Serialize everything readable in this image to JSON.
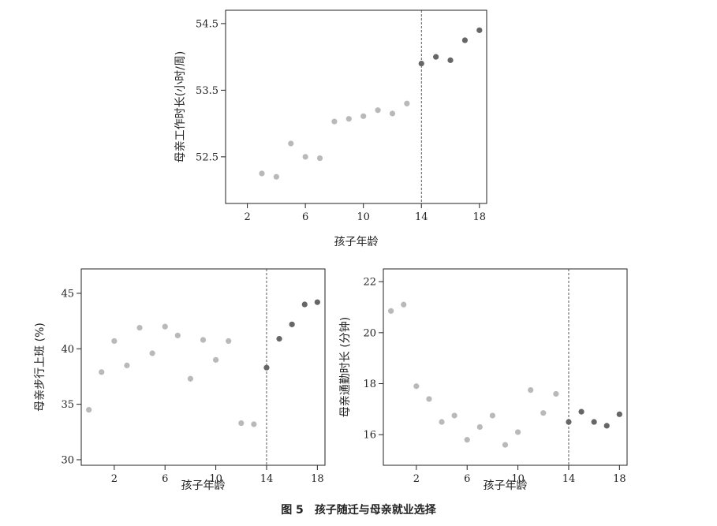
{
  "caption": {
    "number": "图 5",
    "text": "孩子随迁与母亲就业选择"
  },
  "colors": {
    "before": "#b9b9b9",
    "after": "#666666",
    "fit_line": "#8a8a8a",
    "ci_band": "#c8c8c8",
    "cutoff": "#333333",
    "axis": "#222222"
  },
  "chart_data": [
    {
      "id": "hours",
      "type": "scatter",
      "xlabel": "孩子年龄",
      "ylabel": "母亲工作时长(小时/周)",
      "xlim": [
        0.5,
        18.5
      ],
      "ylim": [
        51.8,
        54.7
      ],
      "xticks": [
        2,
        6,
        10,
        14,
        18
      ],
      "yticks": [
        52.5,
        53.5,
        54.5
      ],
      "ytick_labels": [
        "52.5",
        "53.5",
        "54.5"
      ],
      "cutoff": 14,
      "fit": "linear",
      "series": [
        {
          "group": "before",
          "x": [
            3,
            4,
            5,
            6,
            7,
            8,
            9,
            10,
            11,
            12,
            13
          ],
          "y": [
            52.25,
            52.2,
            52.7,
            52.5,
            52.48,
            53.03,
            53.07,
            53.11,
            53.2,
            53.15,
            53.3
          ]
        },
        {
          "group": "after",
          "x": [
            14,
            15,
            16,
            17,
            18
          ],
          "y": [
            53.9,
            54.0,
            53.95,
            54.25,
            54.4
          ]
        }
      ]
    },
    {
      "id": "walk",
      "type": "scatter",
      "xlabel": "孩子年龄",
      "ylabel": "母亲步行上班 (%)",
      "xlim": [
        -0.6,
        18.6
      ],
      "ylim": [
        29.5,
        47.2
      ],
      "xticks": [
        2,
        6,
        10,
        14,
        18
      ],
      "yticks": [
        30,
        35,
        40,
        45
      ],
      "ytick_labels": [
        "30",
        "35",
        "40",
        "45"
      ],
      "cutoff": 14,
      "fit": "quadratic",
      "series": [
        {
          "group": "before",
          "x": [
            0,
            1,
            2,
            3,
            4,
            5,
            6,
            7,
            8,
            9,
            10,
            11,
            12,
            13
          ],
          "y": [
            34.5,
            37.9,
            40.7,
            38.5,
            41.9,
            39.6,
            42.0,
            41.2,
            37.3,
            40.8,
            39.0,
            40.7,
            33.3,
            33.2
          ]
        },
        {
          "group": "after",
          "x": [
            14,
            15,
            16,
            17,
            18
          ],
          "y": [
            38.3,
            40.9,
            42.2,
            44.0,
            44.2
          ]
        }
      ]
    },
    {
      "id": "commute",
      "type": "scatter",
      "xlabel": "孩子年龄",
      "ylabel": "母亲通勤时长 (分钟)",
      "xlim": [
        -0.6,
        18.6
      ],
      "ylim": [
        14.8,
        22.5
      ],
      "xticks": [
        2,
        6,
        10,
        14,
        18
      ],
      "yticks": [
        16,
        18,
        20,
        22
      ],
      "ytick_labels": [
        "16",
        "18",
        "20",
        "22"
      ],
      "cutoff": 14,
      "fit": "quadratic",
      "series": [
        {
          "group": "before",
          "x": [
            0,
            1,
            2,
            3,
            4,
            5,
            6,
            7,
            8,
            9,
            10,
            11,
            12,
            13
          ],
          "y": [
            20.85,
            21.1,
            17.9,
            17.4,
            16.5,
            16.75,
            15.8,
            16.3,
            16.75,
            15.6,
            16.1,
            17.75,
            16.85,
            17.6
          ]
        },
        {
          "group": "after",
          "x": [
            14,
            15,
            16,
            17,
            18
          ],
          "y": [
            16.5,
            16.9,
            16.5,
            16.35,
            16.8
          ]
        }
      ]
    }
  ]
}
